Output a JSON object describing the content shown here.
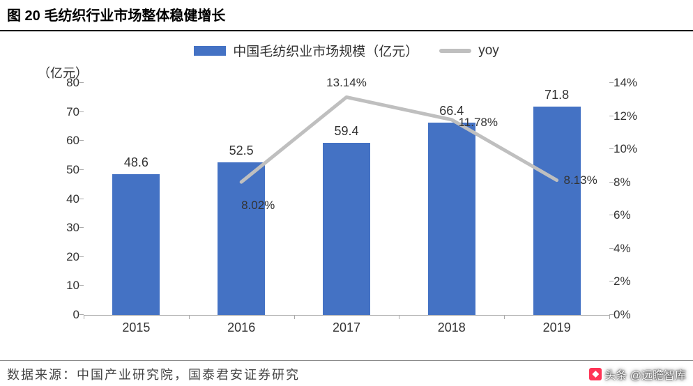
{
  "title": "图 20 毛纺织行业市场整体稳健增长",
  "legend": {
    "bar": "中国毛纺织业市场规模（亿元）",
    "line": "yoy"
  },
  "y_unit_left": "（亿元）",
  "colors": {
    "bar": "#4472c4",
    "line": "#bfbfbf",
    "axis": "#aaaaaa",
    "text": "#333333",
    "background": "#ffffff"
  },
  "chart": {
    "type": "bar+line",
    "categories": [
      "2015",
      "2016",
      "2017",
      "2018",
      "2019"
    ],
    "bar_values": [
      48.6,
      52.5,
      59.4,
      66.4,
      71.8
    ],
    "bar_labels": [
      "48.6",
      "52.5",
      "59.4",
      "66.4",
      "71.8"
    ],
    "yoy_values": [
      null,
      8.02,
      13.14,
      11.78,
      8.13
    ],
    "yoy_labels": [
      "",
      "8.02%",
      "13.14%",
      "11.78%",
      "8.13%"
    ],
    "y_left": {
      "min": 0,
      "max": 80,
      "step": 10,
      "ticks": [
        "0",
        "10",
        "20",
        "30",
        "40",
        "50",
        "60",
        "70",
        "80"
      ]
    },
    "y_right": {
      "min": 0,
      "max": 14,
      "step": 2,
      "ticks": [
        "0%",
        "2%",
        "4%",
        "6%",
        "8%",
        "10%",
        "12%",
        "14%"
      ]
    },
    "bar_width_ratio": 0.45,
    "line_width": 5
  },
  "source": "数据来源：中国产业研究院，国泰君安证券研究",
  "watermark": "头条 @远瞻智库",
  "typography": {
    "title_fontsize": 20,
    "title_weight": "bold",
    "axis_fontsize": 17,
    "legend_fontsize": 19,
    "value_label_fontsize": 18
  }
}
